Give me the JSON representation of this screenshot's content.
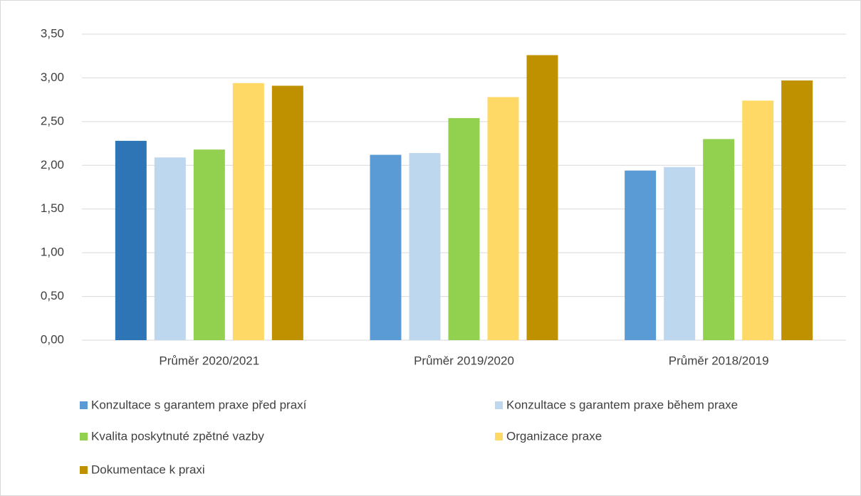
{
  "chart_data": {
    "type": "bar",
    "categories": [
      "Průměr 2020/2021",
      "Průměr 2019/2020",
      "Průměr 2018/2019"
    ],
    "series": [
      {
        "name": "Konzultace s garantem praxe před praxí",
        "color": "#5b9bd5",
        "colors": [
          "#2e75b6",
          "#5b9bd5",
          "#5b9bd5"
        ],
        "values": [
          2.28,
          2.12,
          1.94
        ]
      },
      {
        "name": "Konzultace s garantem praxe během praxe",
        "color": "#bdd7ee",
        "values": [
          2.09,
          2.14,
          1.98
        ]
      },
      {
        "name": "Kvalita poskytnuté zpětné vazby",
        "color": "#92d050",
        "values": [
          2.18,
          2.54,
          2.3
        ]
      },
      {
        "name": "Organizace praxe",
        "color": "#ffd966",
        "values": [
          2.94,
          2.78,
          2.74
        ]
      },
      {
        "name": "Dokumentace k praxi",
        "color": "#bf9000",
        "values": [
          2.91,
          3.26,
          2.97
        ]
      }
    ],
    "ylim": [
      0,
      3.5
    ],
    "yticks": [
      {
        "value": 0,
        "label": "0,00"
      },
      {
        "value": 0.5,
        "label": "0,50"
      },
      {
        "value": 1,
        "label": "1,00"
      },
      {
        "value": 1.5,
        "label": "1,50"
      },
      {
        "value": 2,
        "label": "2,00"
      },
      {
        "value": 2.5,
        "label": "2,50"
      },
      {
        "value": 3,
        "label": "3,00"
      },
      {
        "value": 3.5,
        "label": "3,50"
      }
    ],
    "grid": true
  }
}
